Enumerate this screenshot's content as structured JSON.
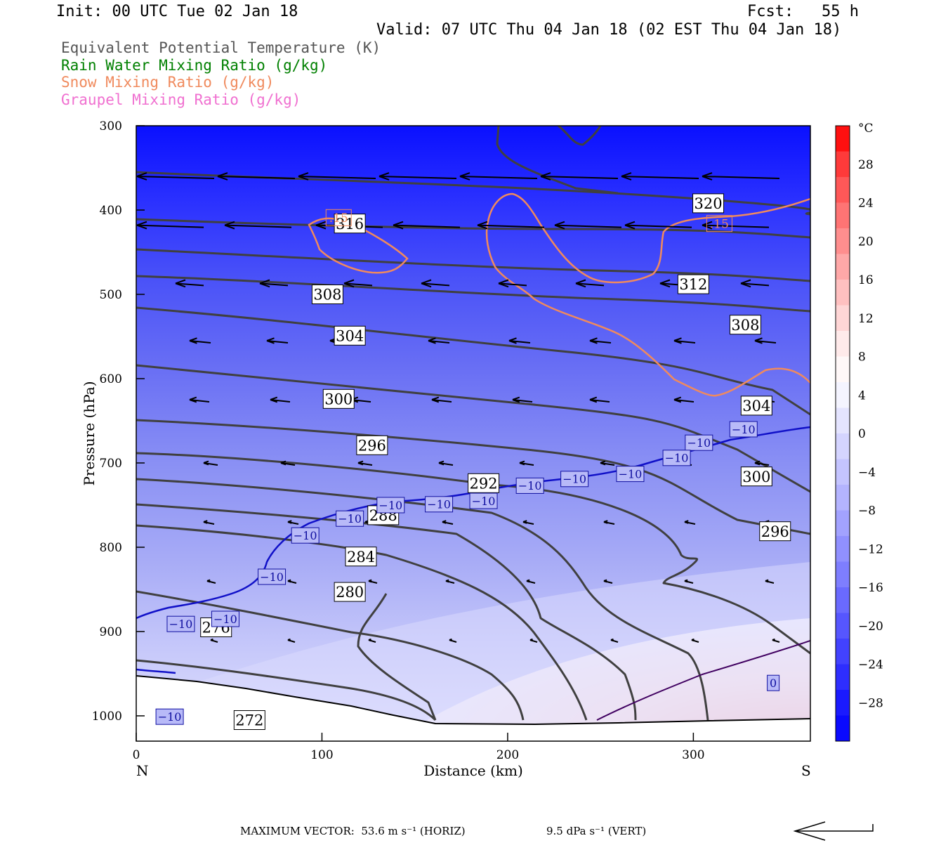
{
  "header": {
    "init": "Init: 00 UTC Tue 02 Jan 18",
    "fcst": "Fcst:   55 h",
    "valid": "Valid: 07 UTC Thu 04 Jan 18 (02 EST Thu 04 Jan 18)"
  },
  "legend": [
    {
      "label": "Equivalent Potential Temperature (K)",
      "color": "#555555"
    },
    {
      "label": "Rain Water Mixing Ratio (g/kg)",
      "color": "#008000"
    },
    {
      "label": "Snow Mixing Ratio (g/kg)",
      "color": "#f08a5d"
    },
    {
      "label": "Graupel Mixing Ratio (g/kg)",
      "color": "#f070d0"
    }
  ],
  "footer": {
    "max_vector_label": "MAXIMUM VECTOR:  53.6 m s⁻¹ (HORIZ)",
    "vert_label": "9.5 dPa s⁻¹ (VERT)"
  },
  "chart_data": {
    "type": "contour",
    "xlabel": "Distance (km)",
    "ylabel": "Pressure (hPa)",
    "xlim": [
      0,
      363
    ],
    "ylim": [
      1030,
      300
    ],
    "x_ticks": [
      0,
      100,
      200,
      300
    ],
    "y_ticks": [
      300,
      400,
      500,
      600,
      700,
      800,
      900,
      1000
    ],
    "left_end_label": "N",
    "right_end_label": "S",
    "colorbar": {
      "unit": "°C",
      "ticks": [
        28,
        24,
        20,
        16,
        12,
        8,
        4,
        0,
        -4,
        -8,
        -12,
        -16,
        -20,
        -24,
        -28
      ],
      "tick_labels": [
        "28",
        "24",
        "20",
        "16",
        "12",
        "8",
        "4",
        "0",
        "−4",
        "−8",
        "−12",
        "−16",
        "−20",
        "−24",
        "−28"
      ],
      "colors_top_to_bottom": [
        "#ff1010",
        "#ff3a3a",
        "#ff5858",
        "#ff7474",
        "#ff8e8e",
        "#ffa8a8",
        "#ffc0c0",
        "#ffd6d6",
        "#ffeaea",
        "#fff8f8",
        "#f4f4ff",
        "#e4e4ff",
        "#d4d4ff",
        "#c4c4ff",
        "#b4b4ff",
        "#a2a2ff",
        "#9090ff",
        "#7e7eff",
        "#6a6aff",
        "#5656ff",
        "#4242ff",
        "#2e2eff",
        "#1a1aff",
        "#0a0aff"
      ]
    },
    "theta_e_labels": [
      {
        "text": "320",
        "x": 308,
        "p": 392
      },
      {
        "text": "316",
        "x": 115,
        "p": 416
      },
      {
        "text": "312",
        "x": 300,
        "p": 488
      },
      {
        "text": "308",
        "x": 103,
        "p": 500
      },
      {
        "text": "308",
        "x": 328,
        "p": 536
      },
      {
        "text": "304",
        "x": 115,
        "p": 549
      },
      {
        "text": "304",
        "x": 334,
        "p": 632
      },
      {
        "text": "300",
        "x": 109,
        "p": 624
      },
      {
        "text": "300",
        "x": 334,
        "p": 716
      },
      {
        "text": "296",
        "x": 127,
        "p": 679
      },
      {
        "text": "296",
        "x": 344,
        "p": 781
      },
      {
        "text": "292",
        "x": 187,
        "p": 724
      },
      {
        "text": "288",
        "x": 133,
        "p": 762
      },
      {
        "text": "284",
        "x": 121,
        "p": 811
      },
      {
        "text": "280",
        "x": 115,
        "p": 853
      },
      {
        "text": "276",
        "x": 43,
        "p": 895
      },
      {
        "text": "272",
        "x": 61,
        "p": 1005
      }
    ],
    "isotherm_labels": [
      {
        "text": "−10",
        "x": 327,
        "p": 660
      },
      {
        "text": "−10",
        "x": 303,
        "p": 676
      },
      {
        "text": "−10",
        "x": 291,
        "p": 694
      },
      {
        "text": "−10",
        "x": 266,
        "p": 713
      },
      {
        "text": "−10",
        "x": 236,
        "p": 719
      },
      {
        "text": "−10",
        "x": 212,
        "p": 727
      },
      {
        "text": "−10",
        "x": 187,
        "p": 745
      },
      {
        "text": "−10",
        "x": 163,
        "p": 749
      },
      {
        "text": "−10",
        "x": 137,
        "p": 750
      },
      {
        "text": "−10",
        "x": 115,
        "p": 766
      },
      {
        "text": "−10",
        "x": 91,
        "p": 786
      },
      {
        "text": "−10",
        "x": 73,
        "p": 835
      },
      {
        "text": "−10",
        "x": 48,
        "p": 885
      },
      {
        "text": "−10",
        "x": 24,
        "p": 891
      },
      {
        "text": "−10",
        "x": 18,
        "p": 1001
      },
      {
        "text": "0",
        "x": 343,
        "p": 961
      }
    ],
    "snow_labels": [
      {
        "text": ".15",
        "x": 109,
        "p": 409
      },
      {
        "text": ".15",
        "x": 314,
        "p": 416
      }
    ]
  }
}
